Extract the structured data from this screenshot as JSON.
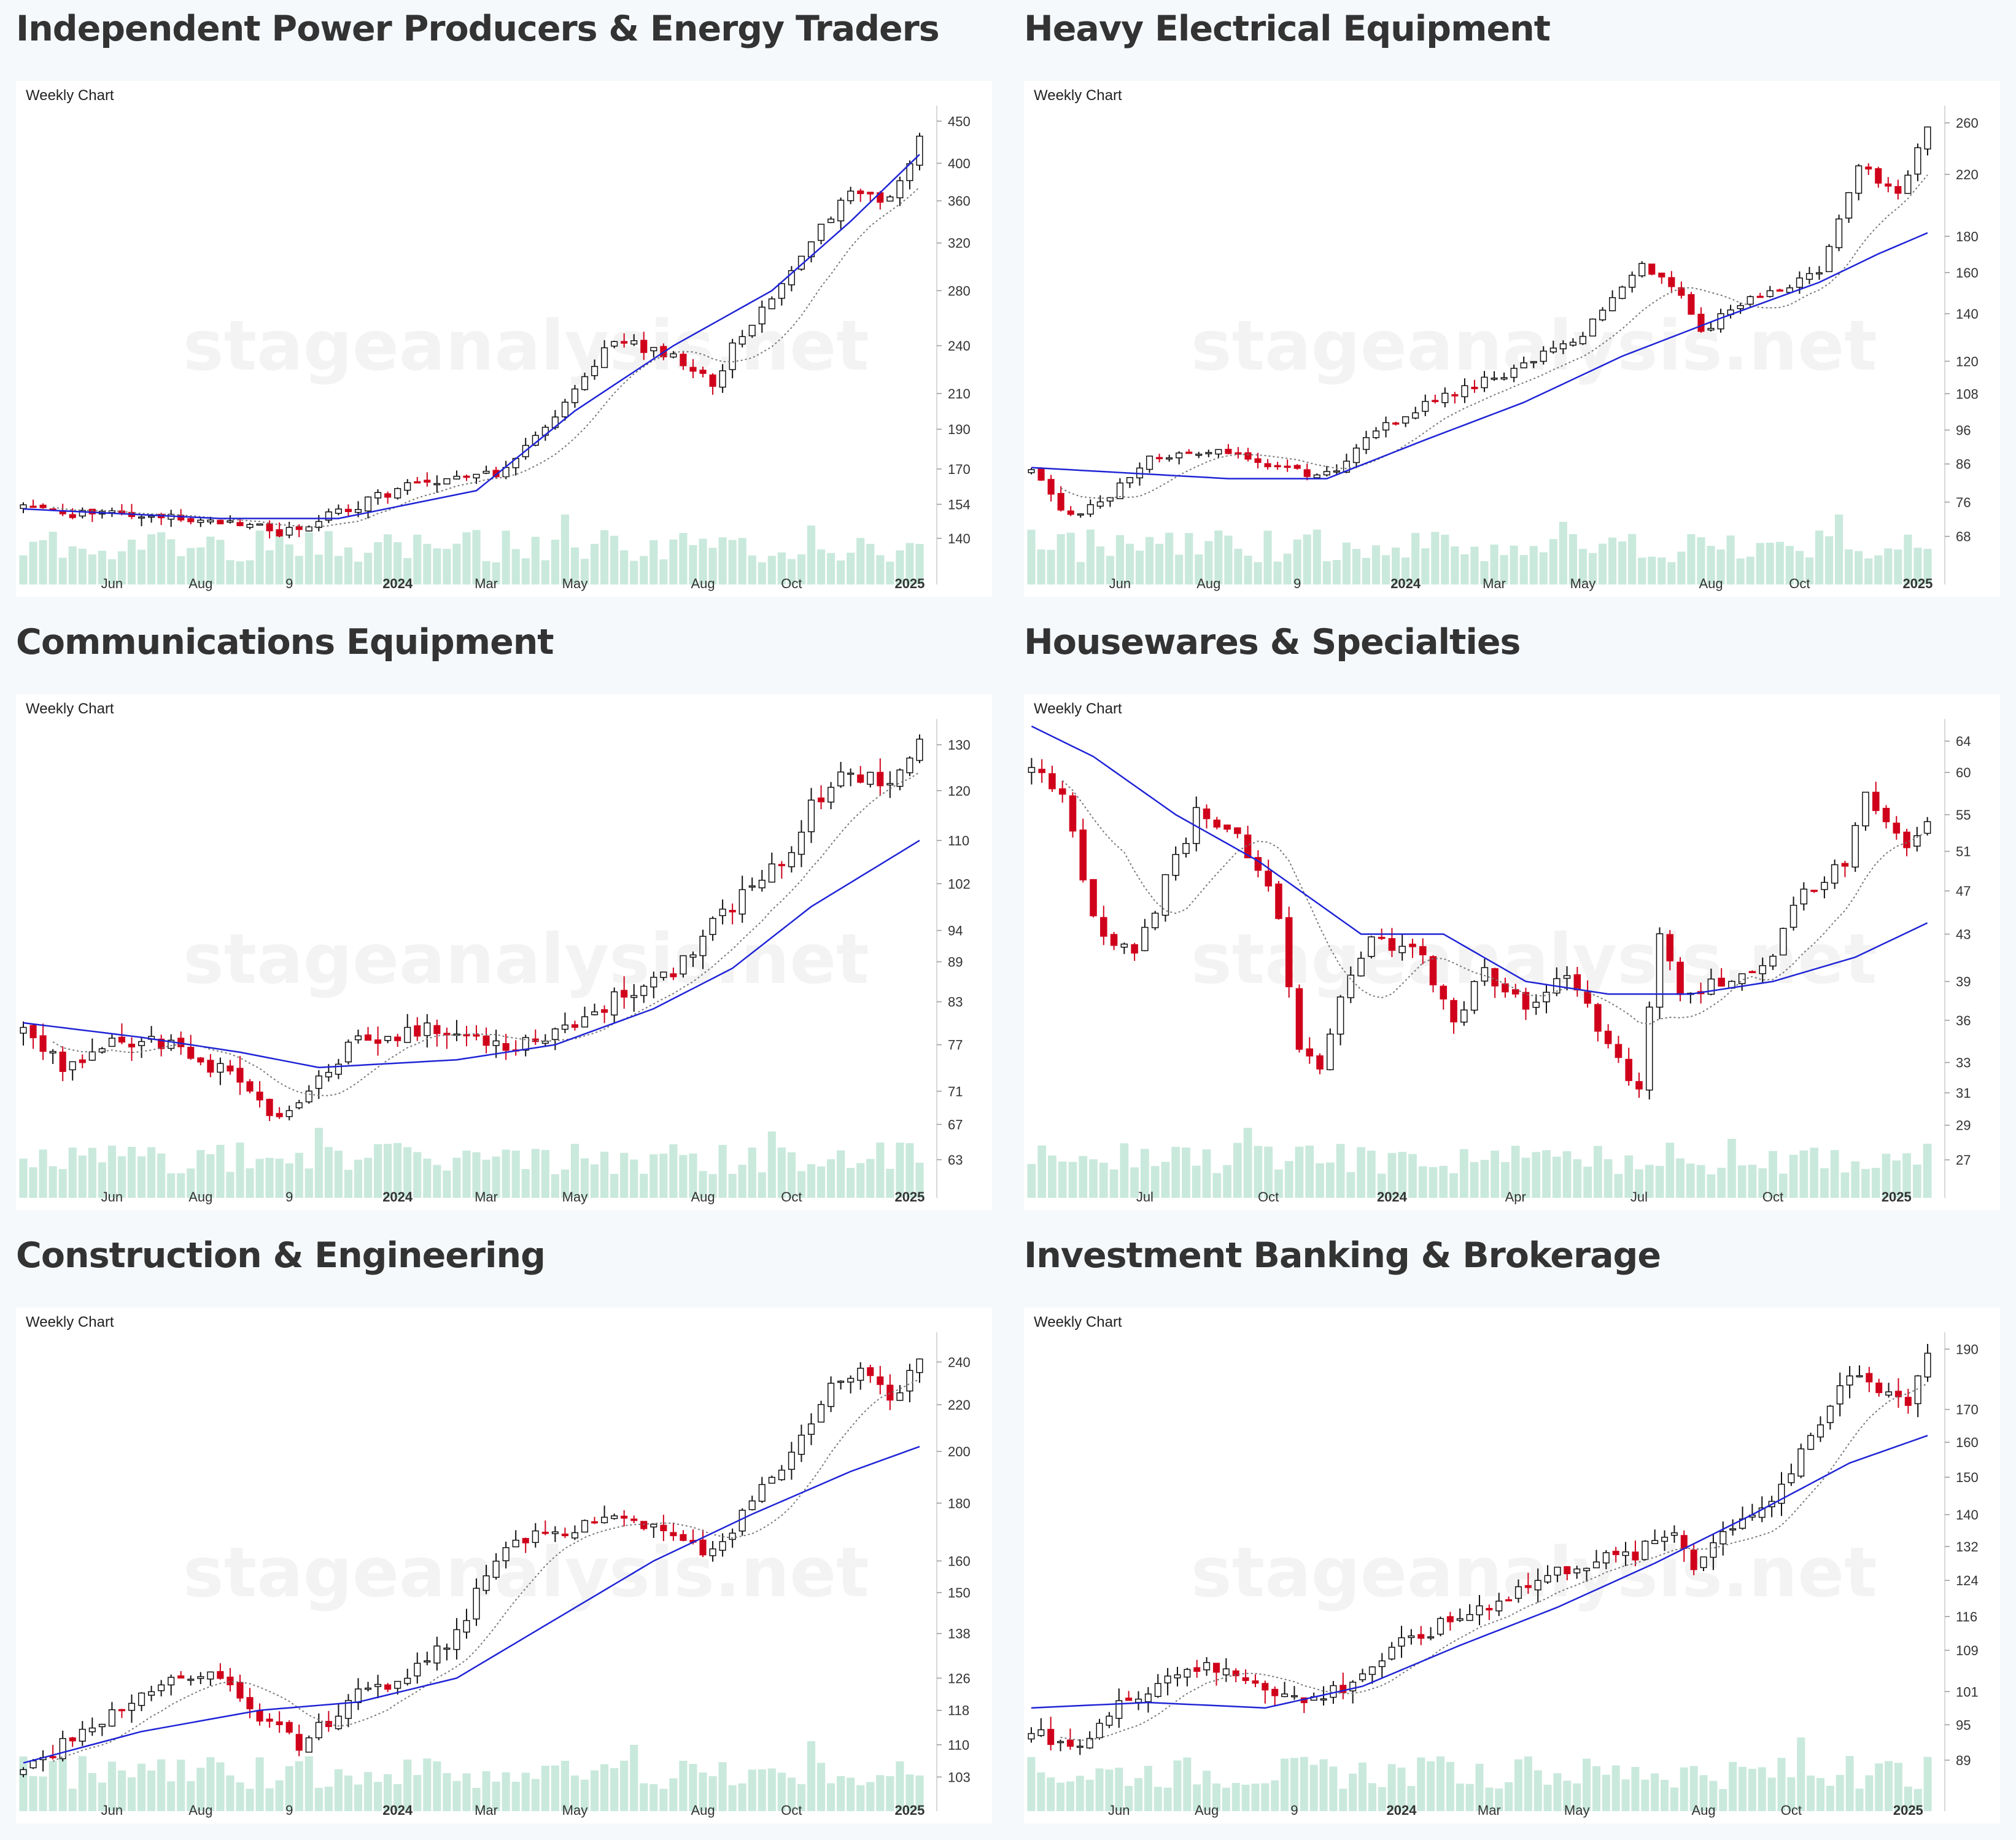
{
  "chart_label": "Weekly Chart",
  "watermark": "stageanalysis.net",
  "colors": {
    "up": "#ffffff",
    "down": "#d0021b",
    "ma_long": "#1f24d6",
    "ma_short": "#777777",
    "volume": "#c9e9dc",
    "outline": "#111111"
  },
  "chart_data": [
    {
      "type": "candlestick",
      "title": "Independent Power Producers & Energy Traders",
      "y_scale": "log",
      "ylim": [
        130,
        470
      ],
      "yticks": [
        "450",
        "400",
        "360",
        "320",
        "280",
        "240",
        "210",
        "190",
        "170",
        "154",
        "140"
      ],
      "xticks": [
        {
          "label": "Jun",
          "w": 9
        },
        {
          "label": "Aug",
          "w": 18
        },
        {
          "label": "9",
          "w": 27
        },
        {
          "label": "2024",
          "w": 38,
          "bold": true
        },
        {
          "label": "Mar",
          "w": 47
        },
        {
          "label": "May",
          "w": 56
        },
        {
          "label": "Aug",
          "w": 69
        },
        {
          "label": "Oct",
          "w": 78
        },
        {
          "label": "2025",
          "w": 90,
          "bold": true
        }
      ],
      "anchors": [
        [
          0,
          152
        ],
        [
          10,
          149
        ],
        [
          20,
          147
        ],
        [
          26,
          142
        ],
        [
          32,
          150
        ],
        [
          40,
          164
        ],
        [
          48,
          168
        ],
        [
          52,
          185
        ],
        [
          56,
          210
        ],
        [
          60,
          245
        ],
        [
          66,
          232
        ],
        [
          70,
          215
        ],
        [
          72,
          240
        ],
        [
          76,
          275
        ],
        [
          80,
          325
        ],
        [
          84,
          370
        ],
        [
          88,
          360
        ],
        [
          91,
          430
        ]
      ],
      "ma_long_anchors": [
        [
          0,
          152
        ],
        [
          20,
          148
        ],
        [
          32,
          148
        ],
        [
          46,
          160
        ],
        [
          56,
          200
        ],
        [
          66,
          240
        ],
        [
          76,
          280
        ],
        [
          84,
          340
        ],
        [
          91,
          410
        ]
      ],
      "ma_short_lag": 3,
      "volume_spikes": [
        [
          55,
          0.95
        ],
        [
          80,
          0.8
        ]
      ]
    },
    {
      "type": "candlestick",
      "title": "Heavy Electrical Equipment",
      "y_scale": "log",
      "ylim": [
        62,
        275
      ],
      "yticks": [
        "260",
        "220",
        "180",
        "160",
        "140",
        "120",
        "108",
        "96",
        "86",
        "76",
        "68"
      ],
      "xticks": [
        {
          "label": "Jun",
          "w": 9
        },
        {
          "label": "Aug",
          "w": 18
        },
        {
          "label": "9",
          "w": 27
        },
        {
          "label": "2024",
          "w": 38,
          "bold": true
        },
        {
          "label": "Mar",
          "w": 47
        },
        {
          "label": "May",
          "w": 56
        },
        {
          "label": "Aug",
          "w": 69
        },
        {
          "label": "Oct",
          "w": 78
        },
        {
          "label": "2025",
          "w": 90,
          "bold": true
        }
      ],
      "anchors": [
        [
          0,
          84
        ],
        [
          4,
          72
        ],
        [
          8,
          78
        ],
        [
          12,
          88
        ],
        [
          20,
          89
        ],
        [
          26,
          84
        ],
        [
          30,
          83
        ],
        [
          36,
          98
        ],
        [
          44,
          110
        ],
        [
          50,
          118
        ],
        [
          56,
          132
        ],
        [
          62,
          165
        ],
        [
          66,
          150
        ],
        [
          68,
          132
        ],
        [
          72,
          145
        ],
        [
          76,
          150
        ],
        [
          80,
          162
        ],
        [
          84,
          228
        ],
        [
          88,
          205
        ],
        [
          91,
          255
        ]
      ],
      "ma_long_anchors": [
        [
          0,
          85
        ],
        [
          20,
          82
        ],
        [
          30,
          82
        ],
        [
          40,
          93
        ],
        [
          50,
          105
        ],
        [
          60,
          122
        ],
        [
          70,
          138
        ],
        [
          80,
          155
        ],
        [
          86,
          170
        ],
        [
          91,
          182
        ]
      ],
      "ma_short_lag": 3,
      "volume_spikes": [
        [
          54,
          0.85
        ],
        [
          82,
          0.95
        ]
      ]
    },
    {
      "type": "candlestick",
      "title": "Communications Equipment",
      "y_scale": "log",
      "ylim": [
        61,
        136
      ],
      "yticks": [
        "130",
        "120",
        "110",
        "102",
        "94",
        "89",
        "83",
        "77",
        "71",
        "67",
        "63"
      ],
      "xticks": [
        {
          "label": "Jun",
          "w": 9
        },
        {
          "label": "Aug",
          "w": 18
        },
        {
          "label": "9",
          "w": 27
        },
        {
          "label": "2024",
          "w": 38,
          "bold": true
        },
        {
          "label": "Mar",
          "w": 47
        },
        {
          "label": "May",
          "w": 56
        },
        {
          "label": "Aug",
          "w": 69
        },
        {
          "label": "Oct",
          "w": 78
        },
        {
          "label": "2025",
          "w": 90,
          "bold": true
        }
      ],
      "anchors": [
        [
          0,
          79
        ],
        [
          4,
          74
        ],
        [
          8,
          77
        ],
        [
          12,
          78
        ],
        [
          16,
          76
        ],
        [
          20,
          74
        ],
        [
          26,
          67
        ],
        [
          30,
          72
        ],
        [
          34,
          78
        ],
        [
          40,
          79
        ],
        [
          46,
          78
        ],
        [
          50,
          77
        ],
        [
          56,
          80
        ],
        [
          62,
          85
        ],
        [
          66,
          88
        ],
        [
          70,
          95
        ],
        [
          74,
          102
        ],
        [
          78,
          108
        ],
        [
          80,
          118
        ],
        [
          84,
          124
        ],
        [
          88,
          122
        ],
        [
          91,
          130
        ]
      ],
      "ma_long_anchors": [
        [
          0,
          80
        ],
        [
          12,
          78
        ],
        [
          22,
          76
        ],
        [
          30,
          74
        ],
        [
          44,
          75
        ],
        [
          54,
          77
        ],
        [
          64,
          82
        ],
        [
          72,
          88
        ],
        [
          80,
          98
        ],
        [
          91,
          110
        ]
      ],
      "ma_short_lag": 3,
      "volume_spikes": [
        [
          30,
          0.95
        ],
        [
          76,
          0.9
        ]
      ]
    },
    {
      "type": "candlestick",
      "title": "Housewares & Specialties",
      "y_scale": "log",
      "ylim": [
        26,
        67
      ],
      "yticks": [
        "64",
        "60",
        "55",
        "51",
        "47",
        "43",
        "39",
        "36",
        "33",
        "31",
        "29",
        "27"
      ],
      "xticks": [
        {
          "label": "Jul",
          "w": 11
        },
        {
          "label": "Oct",
          "w": 23
        },
        {
          "label": "2024",
          "w": 35,
          "bold": true
        },
        {
          "label": "Apr",
          "w": 47
        },
        {
          "label": "Jul",
          "w": 59
        },
        {
          "label": "Oct",
          "w": 72
        },
        {
          "label": "2025",
          "w": 84,
          "bold": true
        }
      ],
      "anchors": [
        [
          0,
          60
        ],
        [
          3,
          58
        ],
        [
          6,
          44
        ],
        [
          10,
          41
        ],
        [
          13,
          48
        ],
        [
          16,
          55
        ],
        [
          20,
          53
        ],
        [
          24,
          45
        ],
        [
          26,
          34
        ],
        [
          28,
          33
        ],
        [
          31,
          40
        ],
        [
          33,
          43
        ],
        [
          38,
          41
        ],
        [
          41,
          36
        ],
        [
          44,
          40
        ],
        [
          48,
          37
        ],
        [
          52,
          40
        ],
        [
          56,
          34
        ],
        [
          59,
          31
        ],
        [
          61,
          43
        ],
        [
          63,
          38
        ],
        [
          67,
          39
        ],
        [
          71,
          40
        ],
        [
          75,
          47
        ],
        [
          79,
          50
        ],
        [
          81,
          57
        ],
        [
          85,
          52
        ],
        [
          87,
          54
        ]
      ],
      "ma_long_anchors": [
        [
          0,
          66
        ],
        [
          6,
          62
        ],
        [
          14,
          55
        ],
        [
          22,
          50
        ],
        [
          32,
          43
        ],
        [
          40,
          43
        ],
        [
          48,
          39
        ],
        [
          56,
          38
        ],
        [
          64,
          38
        ],
        [
          72,
          39
        ],
        [
          80,
          41
        ],
        [
          87,
          44
        ]
      ],
      "ma_short_lag": 3,
      "volume_spikes": [
        [
          21,
          0.95
        ],
        [
          68,
          0.8
        ]
      ]
    },
    {
      "type": "candlestick",
      "title": "Construction & Engineering",
      "y_scale": "log",
      "ylim": [
        100,
        255
      ],
      "yticks": [
        "240",
        "220",
        "200",
        "180",
        "160",
        "150",
        "138",
        "126",
        "118",
        "110",
        "103"
      ],
      "xticks": [
        {
          "label": "Jun",
          "w": 9
        },
        {
          "label": "Aug",
          "w": 18
        },
        {
          "label": "9",
          "w": 27
        },
        {
          "label": "2024",
          "w": 38,
          "bold": true
        },
        {
          "label": "Mar",
          "w": 47
        },
        {
          "label": "May",
          "w": 56
        },
        {
          "label": "Aug",
          "w": 69
        },
        {
          "label": "Oct",
          "w": 78
        },
        {
          "label": "2025",
          "w": 90,
          "bold": true
        }
      ],
      "anchors": [
        [
          0,
          104
        ],
        [
          8,
          116
        ],
        [
          14,
          125
        ],
        [
          20,
          126
        ],
        [
          24,
          116
        ],
        [
          28,
          110
        ],
        [
          34,
          122
        ],
        [
          40,
          128
        ],
        [
          44,
          138
        ],
        [
          48,
          162
        ],
        [
          52,
          168
        ],
        [
          56,
          172
        ],
        [
          60,
          176
        ],
        [
          66,
          170
        ],
        [
          70,
          162
        ],
        [
          74,
          180
        ],
        [
          78,
          198
        ],
        [
          82,
          232
        ],
        [
          86,
          236
        ],
        [
          88,
          220
        ],
        [
          91,
          240
        ]
      ],
      "ma_long_anchors": [
        [
          0,
          106
        ],
        [
          12,
          113
        ],
        [
          24,
          118
        ],
        [
          34,
          120
        ],
        [
          44,
          126
        ],
        [
          54,
          142
        ],
        [
          64,
          160
        ],
        [
          74,
          176
        ],
        [
          84,
          192
        ],
        [
          91,
          202
        ]
      ],
      "ma_short_lag": 3,
      "volume_spikes": [
        [
          62,
          0.9
        ],
        [
          80,
          0.95
        ]
      ]
    },
    {
      "type": "candlestick",
      "title": "Investment Banking & Brokerage",
      "y_scale": "log",
      "ylim": [
        84,
        196
      ],
      "yticks": [
        "190",
        "170",
        "160",
        "150",
        "140",
        "132",
        "124",
        "116",
        "109",
        "101",
        "95",
        "89"
      ],
      "xticks": [
        {
          "label": "Jun",
          "w": 9
        },
        {
          "label": "Aug",
          "w": 18
        },
        {
          "label": "9",
          "w": 27
        },
        {
          "label": "2024",
          "w": 38,
          "bold": true
        },
        {
          "label": "Mar",
          "w": 47
        },
        {
          "label": "May",
          "w": 56
        },
        {
          "label": "Aug",
          "w": 69
        },
        {
          "label": "Oct",
          "w": 78
        },
        {
          "label": "2025",
          "w": 90,
          "bold": true
        }
      ],
      "anchors": [
        [
          0,
          94
        ],
        [
          4,
          90
        ],
        [
          10,
          100
        ],
        [
          16,
          106
        ],
        [
          22,
          104
        ],
        [
          28,
          99
        ],
        [
          32,
          102
        ],
        [
          38,
          110
        ],
        [
          44,
          116
        ],
        [
          50,
          122
        ],
        [
          56,
          128
        ],
        [
          62,
          130
        ],
        [
          66,
          136
        ],
        [
          68,
          128
        ],
        [
          72,
          138
        ],
        [
          76,
          144
        ],
        [
          80,
          160
        ],
        [
          84,
          182
        ],
        [
          88,
          176
        ],
        [
          90,
          172
        ],
        [
          92,
          190
        ]
      ],
      "ma_long_anchors": [
        [
          0,
          98
        ],
        [
          12,
          99
        ],
        [
          24,
          98
        ],
        [
          34,
          102
        ],
        [
          44,
          110
        ],
        [
          54,
          118
        ],
        [
          64,
          128
        ],
        [
          74,
          140
        ],
        [
          84,
          154
        ],
        [
          92,
          162
        ]
      ],
      "ma_short_lag": 3,
      "volume_spikes": [
        [
          79,
          1.0
        ],
        [
          62,
          0.6
        ]
      ]
    }
  ]
}
